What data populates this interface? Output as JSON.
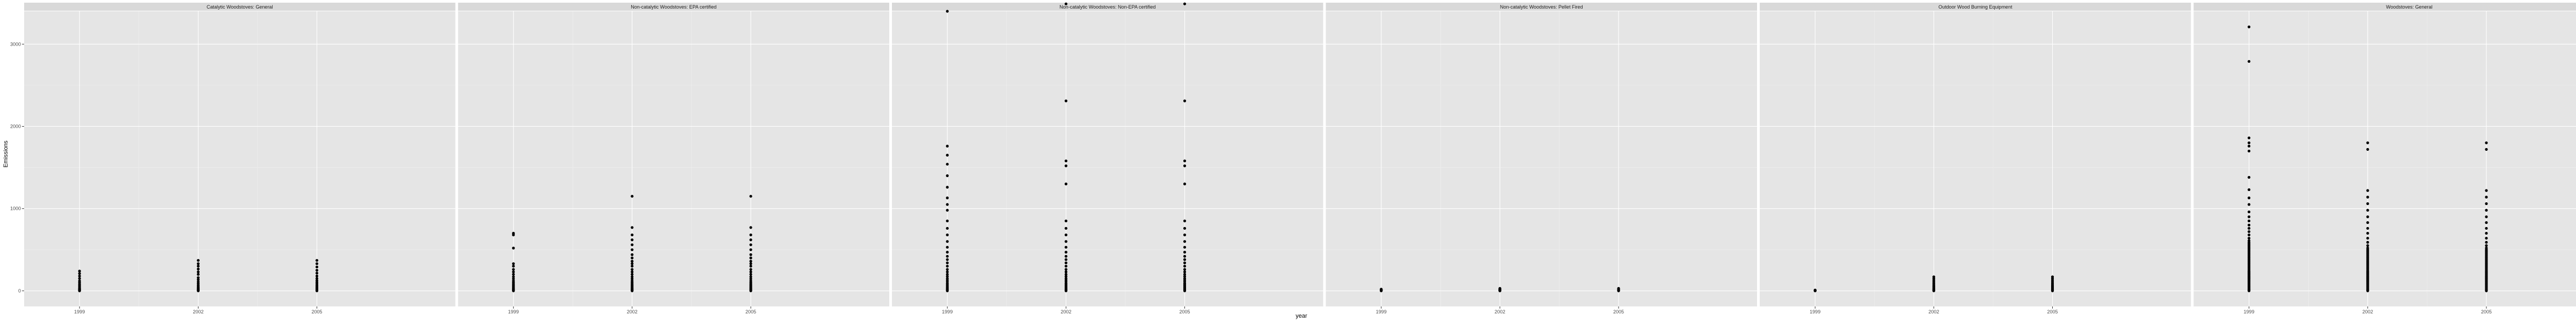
{
  "chart_data": {
    "type": "scatter",
    "facet_layout": "single row of 6 panels, shared x and y axes",
    "xlabel": "year",
    "ylabel": "Emissions",
    "x_ticks": [
      1999,
      2002,
      2005
    ],
    "y_ticks": [
      0,
      1000,
      2000,
      3000
    ],
    "xlim": [
      1997.6,
      2008.5
    ],
    "ylim": [
      -190,
      3400
    ],
    "colors": {
      "panel_bg": "#e5e5e5",
      "strip_bg": "#d9d9d9",
      "grid_major": "#ffffff",
      "grid_minor": "#f0f0f0",
      "point": "#000000"
    },
    "facets": [
      {
        "name": "Catalytic Woodstoves: General",
        "series": [
          {
            "x": 1999,
            "y": [
              0,
              5,
              10,
              18,
              25,
              35,
              50,
              65,
              80,
              100,
              120,
              150,
              180,
              210,
              240
            ]
          },
          {
            "x": 2002,
            "y": [
              0,
              6,
              12,
              20,
              30,
              40,
              55,
              70,
              90,
              110,
              135,
              160,
              200,
              230,
              265,
              300,
              330,
              370
            ]
          },
          {
            "x": 2005,
            "y": [
              0,
              5,
              10,
              20,
              30,
              42,
              55,
              70,
              88,
              105,
              125,
              150,
              180,
              215,
              250,
              290,
              330,
              370
            ]
          }
        ]
      },
      {
        "name": "Non-catalytic Woodstoves: EPA certified",
        "series": [
          {
            "x": 1999,
            "y": [
              0,
              8,
              16,
              26,
              38,
              52,
              66,
              82,
              100,
              120,
              145,
              170,
              200,
              230,
              260,
              300,
              330,
              520,
              680,
              700
            ]
          },
          {
            "x": 2002,
            "y": [
              0,
              8,
              16,
              26,
              38,
              52,
              66,
              82,
              100,
              120,
              145,
              170,
              200,
              230,
              260,
              300,
              330,
              360,
              400,
              440,
              500,
              560,
              620,
              680,
              770,
              1150
            ]
          },
          {
            "x": 2005,
            "y": [
              0,
              8,
              16,
              26,
              38,
              52,
              66,
              82,
              100,
              120,
              145,
              170,
              200,
              230,
              260,
              300,
              330,
              360,
              400,
              440,
              500,
              560,
              620,
              680,
              770,
              1150
            ]
          }
        ]
      },
      {
        "name": "Non-catalytic Woodstoves: Non-EPA certified",
        "series": [
          {
            "x": 1999,
            "y": [
              0,
              10,
              20,
              32,
              45,
              60,
              75,
              90,
              110,
              130,
              150,
              175,
              200,
              230,
              260,
              300,
              340,
              380,
              420,
              470,
              530,
              600,
              680,
              760,
              850,
              980,
              1050,
              1130,
              1260,
              1400,
              1540,
              1650,
              1760,
              3400
            ]
          },
          {
            "x": 2002,
            "y": [
              0,
              10,
              20,
              32,
              45,
              60,
              75,
              90,
              110,
              130,
              150,
              175,
              200,
              230,
              260,
              300,
              340,
              380,
              420,
              470,
              530,
              600,
              680,
              760,
              850,
              1300,
              1520,
              1580,
              2310,
              3490
            ]
          },
          {
            "x": 2005,
            "y": [
              0,
              10,
              20,
              32,
              45,
              60,
              75,
              90,
              110,
              130,
              150,
              175,
              200,
              230,
              260,
              300,
              340,
              380,
              420,
              470,
              530,
              600,
              680,
              760,
              850,
              1300,
              1520,
              1580,
              2310,
              3490
            ]
          }
        ]
      },
      {
        "name": "Non-catalytic Woodstoves: Pellet Fired",
        "series": [
          {
            "x": 1999,
            "y": [
              0,
              2,
              4,
              6,
              8,
              10,
              13,
              16,
              20
            ]
          },
          {
            "x": 2002,
            "y": [
              0,
              2,
              4,
              6,
              8,
              10,
              13,
              16,
              20,
              25,
              30
            ]
          },
          {
            "x": 2005,
            "y": [
              0,
              2,
              4,
              6,
              8,
              10,
              13,
              16,
              20,
              25,
              30
            ]
          }
        ]
      },
      {
        "name": "Outdoor Wood Burning Equipment",
        "series": [
          {
            "x": 1999,
            "y": [
              0,
              1,
              2,
              3,
              4,
              5,
              7,
              9
            ]
          },
          {
            "x": 2002,
            "y": [
              0,
              5,
              10,
              18,
              26,
              36,
              48,
              60,
              75,
              92,
              110,
              130,
              150,
              170
            ]
          },
          {
            "x": 2005,
            "y": [
              0,
              5,
              10,
              18,
              26,
              36,
              48,
              60,
              75,
              92,
              110,
              130,
              150,
              170
            ]
          }
        ]
      },
      {
        "name": "Woodstoves: General",
        "series": [
          {
            "x": 1999,
            "y": [
              0,
              8,
              16,
              25,
              35,
              45,
              55,
              65,
              75,
              85,
              95,
              105,
              115,
              125,
              135,
              145,
              155,
              165,
              175,
              185,
              195,
              205,
              215,
              225,
              235,
              245,
              260,
              275,
              290,
              305,
              320,
              335,
              350,
              365,
              380,
              395,
              410,
              425,
              440,
              455,
              470,
              485,
              500,
              515,
              530,
              545,
              560,
              575,
              590,
              610,
              640,
              680,
              720,
              760,
              800,
              850,
              900,
              960,
              1050,
              1130,
              1230,
              1380,
              1700,
              1760,
              1800,
              1860,
              2790,
              3210
            ]
          },
          {
            "x": 2002,
            "y": [
              0,
              8,
              16,
              25,
              35,
              45,
              55,
              65,
              75,
              85,
              95,
              105,
              115,
              125,
              135,
              145,
              155,
              165,
              175,
              185,
              195,
              205,
              215,
              225,
              235,
              245,
              260,
              275,
              290,
              305,
              320,
              335,
              350,
              365,
              380,
              395,
              410,
              425,
              440,
              455,
              470,
              485,
              500,
              520,
              550,
              590,
              640,
              700,
              760,
              830,
              900,
              980,
              1060,
              1140,
              1220,
              1720,
              1800
            ]
          },
          {
            "x": 2005,
            "y": [
              0,
              8,
              16,
              25,
              35,
              45,
              55,
              65,
              75,
              85,
              95,
              105,
              115,
              125,
              135,
              145,
              155,
              165,
              175,
              185,
              195,
              205,
              215,
              225,
              235,
              245,
              260,
              275,
              290,
              305,
              320,
              335,
              350,
              365,
              380,
              395,
              410,
              425,
              440,
              455,
              470,
              485,
              500,
              520,
              550,
              590,
              640,
              700,
              760,
              830,
              900,
              980,
              1060,
              1140,
              1220,
              1720,
              1800
            ]
          }
        ]
      }
    ]
  }
}
